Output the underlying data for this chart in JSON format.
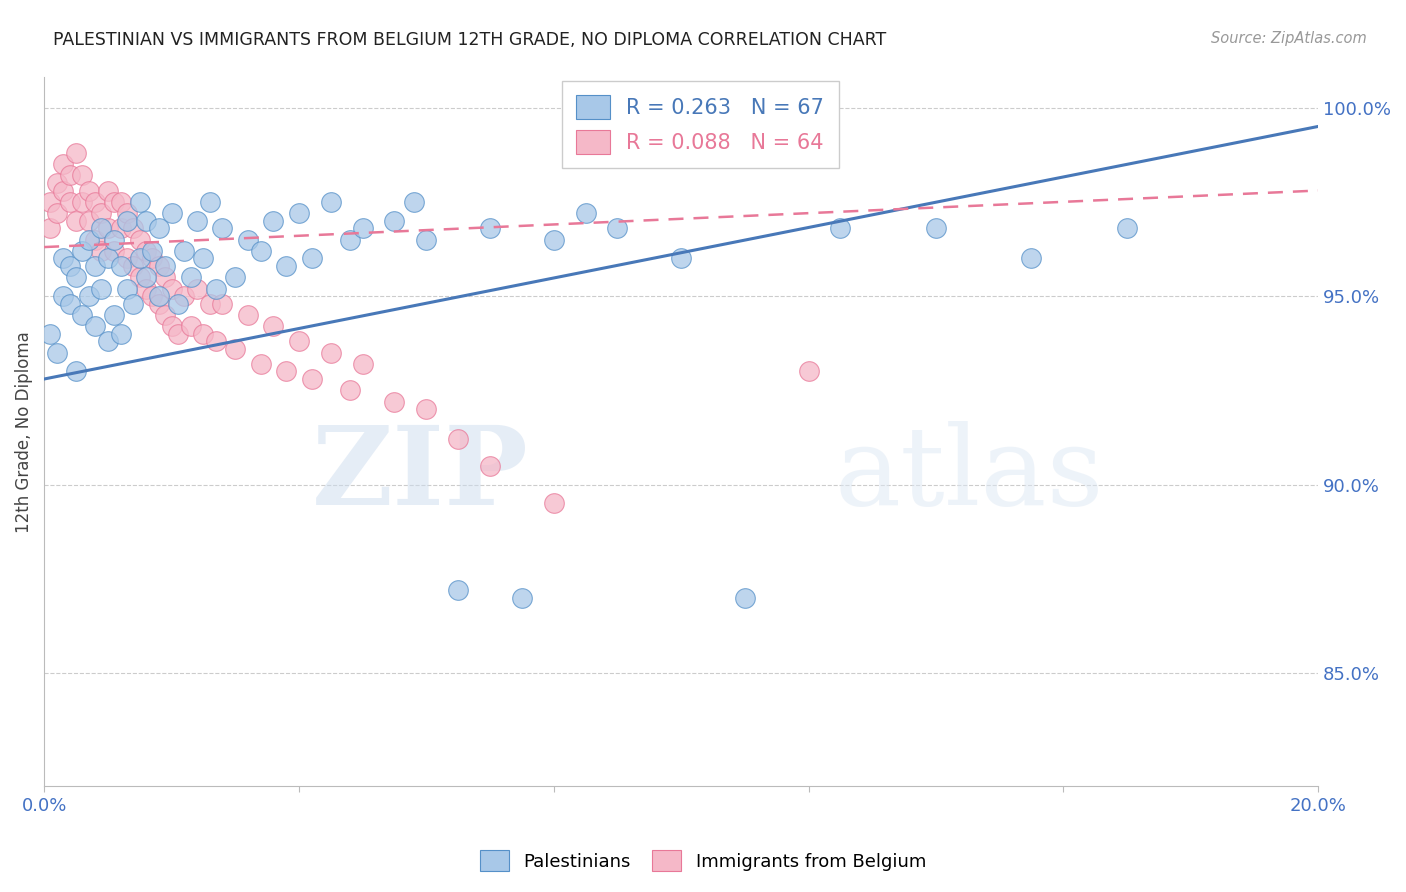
{
  "title": "PALESTINIAN VS IMMIGRANTS FROM BELGIUM 12TH GRADE, NO DIPLOMA CORRELATION CHART",
  "source": "Source: ZipAtlas.com",
  "ylabel": "12th Grade, No Diploma",
  "xlim": [
    0.0,
    0.2
  ],
  "ylim": [
    0.82,
    1.008
  ],
  "yticks": [
    0.85,
    0.9,
    0.95,
    1.0
  ],
  "ytick_labels": [
    "85.0%",
    "90.0%",
    "95.0%",
    "100.0%"
  ],
  "xtick_positions": [
    0.0,
    0.04,
    0.08,
    0.12,
    0.16,
    0.2
  ],
  "xtick_labels": [
    "0.0%",
    "",
    "",
    "",
    "",
    "20.0%"
  ],
  "blue_R": 0.263,
  "blue_N": 67,
  "pink_R": 0.088,
  "pink_N": 64,
  "blue_fill": "#a8c8e8",
  "pink_fill": "#f5b8c8",
  "blue_edge": "#5590c8",
  "pink_edge": "#e87898",
  "blue_line_color": "#4878b8",
  "pink_line_color": "#e87898",
  "watermark_color": "#d8e8f5",
  "background_color": "#ffffff",
  "grid_color": "#cccccc",
  "tick_color": "#4472c4",
  "title_color": "#222222",
  "ylabel_color": "#444444",
  "source_color": "#999999",
  "blue_line_y0": 0.928,
  "blue_line_y1": 0.995,
  "pink_line_y0": 0.963,
  "pink_line_y1": 0.978,
  "blue_x": [
    0.001,
    0.002,
    0.003,
    0.003,
    0.004,
    0.004,
    0.005,
    0.005,
    0.006,
    0.006,
    0.007,
    0.007,
    0.008,
    0.008,
    0.009,
    0.009,
    0.01,
    0.01,
    0.011,
    0.011,
    0.012,
    0.012,
    0.013,
    0.013,
    0.014,
    0.015,
    0.015,
    0.016,
    0.016,
    0.017,
    0.018,
    0.018,
    0.019,
    0.02,
    0.021,
    0.022,
    0.023,
    0.024,
    0.025,
    0.026,
    0.027,
    0.028,
    0.03,
    0.032,
    0.034,
    0.036,
    0.038,
    0.04,
    0.042,
    0.045,
    0.048,
    0.05,
    0.055,
    0.058,
    0.06,
    0.065,
    0.07,
    0.075,
    0.08,
    0.085,
    0.09,
    0.1,
    0.11,
    0.125,
    0.14,
    0.155,
    0.17
  ],
  "blue_y": [
    0.94,
    0.935,
    0.96,
    0.95,
    0.948,
    0.958,
    0.93,
    0.955,
    0.945,
    0.962,
    0.95,
    0.965,
    0.942,
    0.958,
    0.952,
    0.968,
    0.938,
    0.96,
    0.945,
    0.965,
    0.94,
    0.958,
    0.952,
    0.97,
    0.948,
    0.96,
    0.975,
    0.955,
    0.97,
    0.962,
    0.95,
    0.968,
    0.958,
    0.972,
    0.948,
    0.962,
    0.955,
    0.97,
    0.96,
    0.975,
    0.952,
    0.968,
    0.955,
    0.965,
    0.962,
    0.97,
    0.958,
    0.972,
    0.96,
    0.975,
    0.965,
    0.968,
    0.97,
    0.975,
    0.965,
    0.872,
    0.968,
    0.87,
    0.965,
    0.972,
    0.968,
    0.96,
    0.87,
    0.968,
    0.968,
    0.96,
    0.968
  ],
  "pink_x": [
    0.001,
    0.001,
    0.002,
    0.002,
    0.003,
    0.003,
    0.004,
    0.004,
    0.005,
    0.005,
    0.006,
    0.006,
    0.007,
    0.007,
    0.008,
    0.008,
    0.009,
    0.009,
    0.01,
    0.01,
    0.011,
    0.011,
    0.012,
    0.012,
    0.013,
    0.013,
    0.014,
    0.014,
    0.015,
    0.015,
    0.016,
    0.016,
    0.017,
    0.017,
    0.018,
    0.018,
    0.019,
    0.019,
    0.02,
    0.02,
    0.021,
    0.022,
    0.023,
    0.024,
    0.025,
    0.026,
    0.027,
    0.028,
    0.03,
    0.032,
    0.034,
    0.036,
    0.038,
    0.04,
    0.042,
    0.045,
    0.048,
    0.05,
    0.055,
    0.06,
    0.065,
    0.07,
    0.08,
    0.12
  ],
  "pink_y": [
    0.968,
    0.975,
    0.972,
    0.98,
    0.978,
    0.985,
    0.975,
    0.982,
    0.97,
    0.988,
    0.975,
    0.982,
    0.97,
    0.978,
    0.965,
    0.975,
    0.962,
    0.972,
    0.968,
    0.978,
    0.962,
    0.975,
    0.968,
    0.975,
    0.96,
    0.972,
    0.958,
    0.968,
    0.955,
    0.965,
    0.952,
    0.962,
    0.95,
    0.96,
    0.948,
    0.958,
    0.945,
    0.955,
    0.942,
    0.952,
    0.94,
    0.95,
    0.942,
    0.952,
    0.94,
    0.948,
    0.938,
    0.948,
    0.936,
    0.945,
    0.932,
    0.942,
    0.93,
    0.938,
    0.928,
    0.935,
    0.925,
    0.932,
    0.922,
    0.92,
    0.912,
    0.905,
    0.895,
    0.93
  ]
}
